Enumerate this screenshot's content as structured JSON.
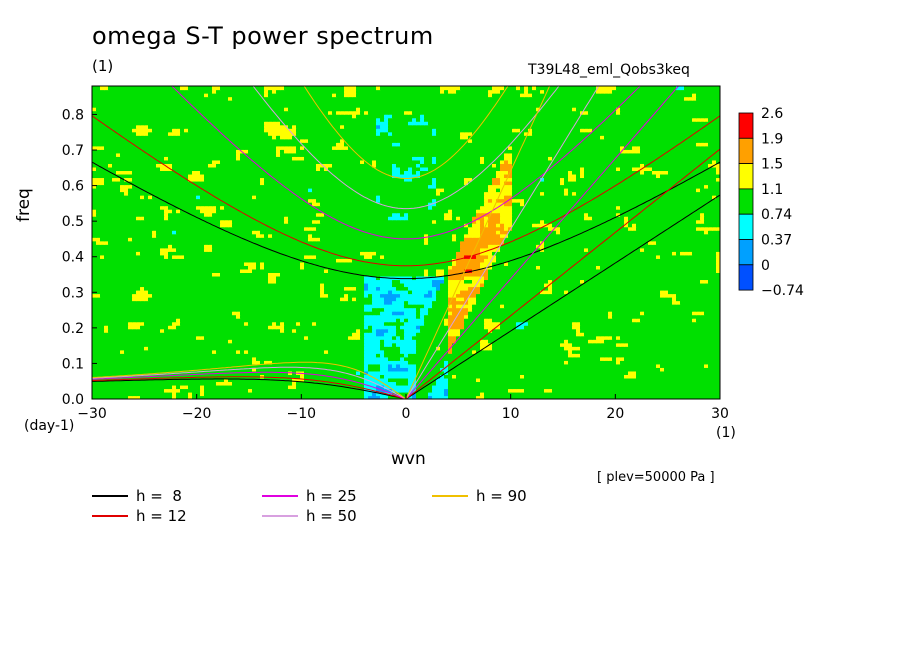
{
  "title": "omega S-T power spectrum",
  "units_top": "(1)",
  "run_name": "T39L48_eml_Qobs3keq",
  "level_note": "[ plev=50000 Pa ]",
  "chart_data": {
    "type": "heatmap",
    "xlabel": "wvn",
    "ylabel": "freq",
    "x_units": "(1)",
    "y_units": "(day-1)",
    "xlim": [
      -30,
      30
    ],
    "ylim": [
      0,
      0.88
    ],
    "x_ticks": [
      -30,
      -20,
      -10,
      0,
      10,
      20,
      30
    ],
    "x_tick_labels": [
      "-30",
      "-20",
      "-10",
      "0",
      "10",
      "20",
      "30"
    ],
    "y_ticks": [
      0,
      0.1,
      0.2,
      0.3,
      0.4,
      0.5,
      0.6,
      0.7,
      0.8
    ],
    "y_tick_labels": [
      "0.0",
      "0.1",
      "0.2",
      "0.3",
      "0.4",
      "0.5",
      "0.6",
      "0.7",
      "0.8"
    ],
    "colorbar": {
      "labels": [
        "2.6",
        "1.9",
        "1.5",
        "1.1",
        "0.74",
        "0.37",
        "0",
        "-0.74"
      ],
      "colors": [
        "#ff0000",
        "#ffa000",
        "#ffff00",
        "#00e000",
        "#00ffff",
        "#00a0ff",
        "#0050ff"
      ]
    },
    "dispersion_curves": [
      {
        "name": "h =  8",
        "color": "#000000",
        "equivalent_depth_m": 8
      },
      {
        "name": "h = 12",
        "color": "#e00000",
        "equivalent_depth_m": 12
      },
      {
        "name": "h = 25",
        "color": "#e000e0",
        "equivalent_depth_m": 25
      },
      {
        "name": "h = 50",
        "color": "#d8a0e0",
        "equivalent_depth_m": 50
      },
      {
        "name": "h = 90",
        "color": "#f0c000",
        "equivalent_depth_m": 90
      }
    ],
    "grid": false
  }
}
